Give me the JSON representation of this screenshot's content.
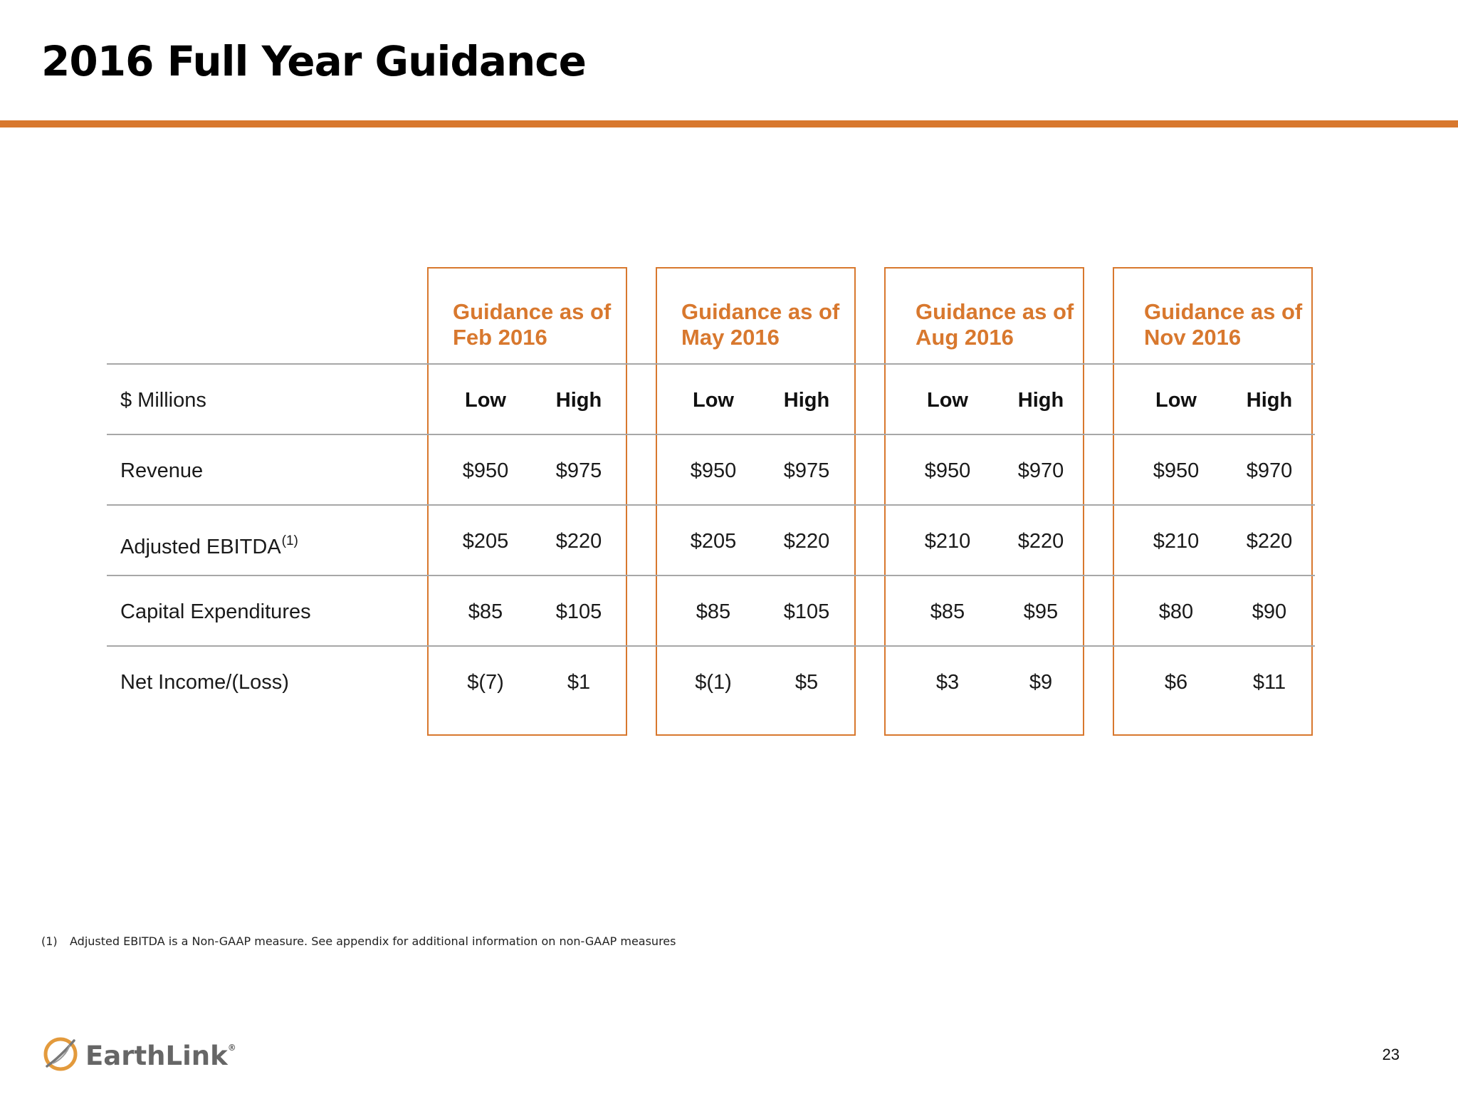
{
  "slide": {
    "title": "2016 Full Year Guidance",
    "page_number": "23",
    "accent_color": "#d8782e"
  },
  "table": {
    "unit_label": "$ Millions",
    "columns": [
      {
        "header_line1": "Guidance as of",
        "header_line2": "Feb 2016",
        "low_label": "Low",
        "high_label": "High"
      },
      {
        "header_line1": "Guidance as of",
        "header_line2": "May 2016",
        "low_label": "Low",
        "high_label": "High"
      },
      {
        "header_line1": "Guidance as of",
        "header_line2": "Aug 2016",
        "low_label": "Low",
        "high_label": "High"
      },
      {
        "header_line1": "Guidance as of",
        "header_line2": "Nov 2016",
        "low_label": "Low",
        "high_label": "High"
      }
    ],
    "rows": [
      {
        "label": "Revenue",
        "sup": "",
        "values": [
          [
            "$950",
            "$975"
          ],
          [
            "$950",
            "$975"
          ],
          [
            "$950",
            "$970"
          ],
          [
            "$950",
            "$970"
          ]
        ]
      },
      {
        "label": "Adjusted EBITDA",
        "sup": "(1)",
        "values": [
          [
            "$205",
            "$220"
          ],
          [
            "$205",
            "$220"
          ],
          [
            "$210",
            "$220"
          ],
          [
            "$210",
            "$220"
          ]
        ]
      },
      {
        "label": "Capital Expenditures",
        "sup": "",
        "values": [
          [
            "$85",
            "$105"
          ],
          [
            "$85",
            "$105"
          ],
          [
            "$85",
            "$95"
          ],
          [
            "$80",
            "$90"
          ]
        ]
      },
      {
        "label": "Net Income/(Loss)",
        "sup": "",
        "values": [
          [
            "$(7)",
            "$1"
          ],
          [
            "$(1)",
            "$5"
          ],
          [
            "$3",
            "$9"
          ],
          [
            "$6",
            "$11"
          ]
        ]
      }
    ]
  },
  "footnote": {
    "number": "(1)",
    "text": "Adjusted EBITDA is a Non-GAAP measure.  See appendix for additional information on non-GAAP measures"
  },
  "logo": {
    "text": "EarthLink",
    "reg": "®",
    "icon": "earthlink-globe-icon"
  }
}
